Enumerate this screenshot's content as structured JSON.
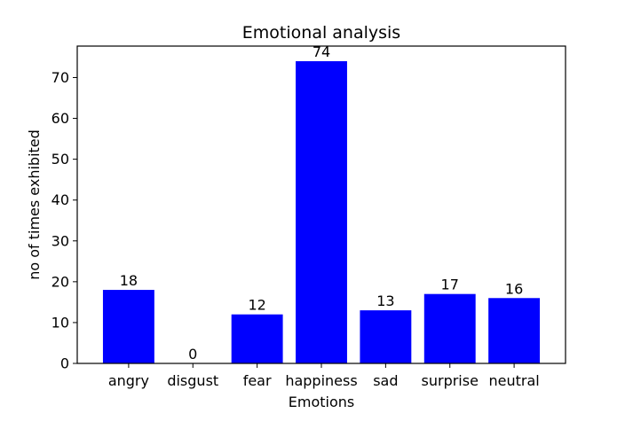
{
  "chart_data": {
    "type": "bar",
    "title": "Emotional analysis",
    "xlabel": "Emotions",
    "ylabel": "no of times exhibited",
    "categories": [
      "angry",
      "disgust",
      "fear",
      "happiness",
      "sad",
      "surprise",
      "neutral"
    ],
    "values": [
      18,
      0,
      12,
      74,
      13,
      17,
      16
    ],
    "ylim": [
      0,
      77.7
    ],
    "yticks": [
      0,
      10,
      20,
      30,
      40,
      50,
      60,
      70
    ],
    "bar_color": "#0000ff",
    "grid": false,
    "legend": "none"
  }
}
